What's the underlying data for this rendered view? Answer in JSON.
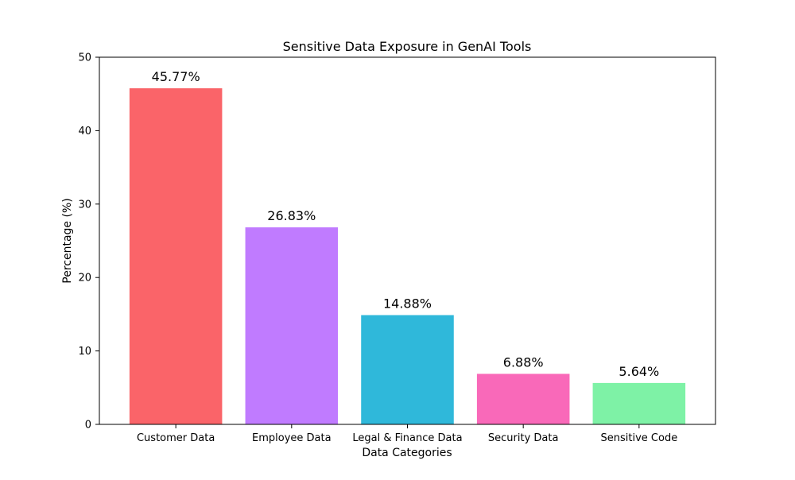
{
  "chart_data": {
    "type": "bar",
    "title": "Sensitive Data Exposure in GenAI Tools",
    "xlabel": "Data Categories",
    "ylabel": "Percentage (%)",
    "categories": [
      "Customer Data",
      "Employee Data",
      "Legal & Finance Data",
      "Security Data",
      "Sensitive Code"
    ],
    "values": [
      45.77,
      26.83,
      14.88,
      6.88,
      5.64
    ],
    "value_labels": [
      "45.77%",
      "26.83%",
      "14.88%",
      "6.88%",
      "5.64%"
    ],
    "colors": [
      "#fa6469",
      "#c07bff",
      "#2fb8da",
      "#f969b9",
      "#7ef2a6"
    ],
    "ylim": [
      0,
      50
    ],
    "yticks": [
      0,
      10,
      20,
      30,
      40,
      50
    ],
    "grid": false,
    "legend": "none"
  }
}
